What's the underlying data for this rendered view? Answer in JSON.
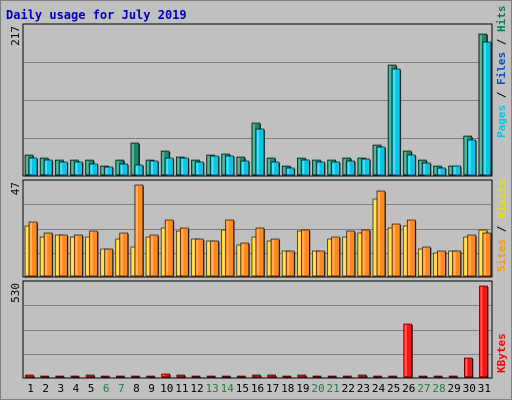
{
  "title": "Daily usage for July 2019",
  "chart_data": [
    {
      "type": "bar",
      "name": "top",
      "ymax_label": "217",
      "ylim": [
        0,
        217
      ],
      "legend": [
        {
          "text": "Pages",
          "color": "#00c8e8"
        },
        {
          "text": "Files",
          "color": "#0050c8"
        },
        {
          "text": "Hits",
          "color": "#00805a"
        }
      ],
      "categories": [
        "1",
        "2",
        "3",
        "4",
        "5",
        "6",
        "7",
        "8",
        "9",
        "10",
        "11",
        "12",
        "13",
        "14",
        "15",
        "16",
        "17",
        "18",
        "19",
        "20",
        "21",
        "22",
        "23",
        "24",
        "25",
        "26",
        "27",
        "28",
        "29",
        "30",
        "31"
      ],
      "series": [
        {
          "name": "Hits",
          "color": "#1a8a6a",
          "values": [
            30,
            25,
            23,
            23,
            22,
            14,
            22,
            48,
            22,
            35,
            27,
            22,
            30,
            31,
            27,
            77,
            25,
            13,
            26,
            22,
            22,
            26,
            26,
            44,
            164,
            35,
            22,
            14,
            14,
            58,
            210
          ]
        },
        {
          "name": "Files",
          "color": "#00c8e8",
          "values": [
            25,
            22,
            19,
            19,
            17,
            12,
            16,
            15,
            21,
            26,
            25,
            19,
            28,
            28,
            21,
            69,
            20,
            11,
            22,
            19,
            19,
            21,
            24,
            41,
            157,
            30,
            18,
            11,
            13,
            52,
            198
          ]
        }
      ]
    },
    {
      "type": "bar",
      "name": "middle",
      "ymax_label": "47",
      "ylim": [
        0,
        47
      ],
      "legend": [
        {
          "text": "Sites",
          "color": "#ff9900"
        },
        {
          "text": "Visits",
          "color": "#e8e000"
        }
      ],
      "categories": [
        "1",
        "2",
        "3",
        "4",
        "5",
        "6",
        "7",
        "8",
        "9",
        "10",
        "11",
        "12",
        "13",
        "14",
        "15",
        "16",
        "17",
        "18",
        "19",
        "20",
        "21",
        "22",
        "23",
        "24",
        "25",
        "26",
        "27",
        "28",
        "29",
        "30",
        "31"
      ],
      "series": [
        {
          "name": "Visits",
          "color": "#ffd21e",
          "values": [
            26,
            20,
            21,
            20,
            20,
            14,
            19,
            15,
            20,
            25,
            23,
            19,
            18,
            24,
            16,
            20,
            18,
            13,
            23,
            13,
            19,
            20,
            22,
            40,
            25,
            26,
            14,
            12,
            13,
            20,
            24
          ]
        },
        {
          "name": "Sites",
          "color": "#ff8a1a",
          "values": [
            28,
            22,
            21,
            21,
            23,
            14,
            22,
            47,
            21,
            29,
            25,
            19,
            18,
            29,
            17,
            25,
            19,
            13,
            24,
            13,
            20,
            23,
            24,
            44,
            27,
            29,
            15,
            13,
            13,
            21,
            22
          ]
        }
      ]
    },
    {
      "type": "bar",
      "name": "bottom",
      "ymax_label": "530",
      "ylim": [
        0,
        530
      ],
      "legend": [
        {
          "text": "KBytes",
          "color": "#ff0000"
        }
      ],
      "categories": [
        "1",
        "2",
        "3",
        "4",
        "5",
        "6",
        "7",
        "8",
        "9",
        "10",
        "11",
        "12",
        "13",
        "14",
        "15",
        "16",
        "17",
        "18",
        "19",
        "20",
        "21",
        "22",
        "23",
        "24",
        "25",
        "26",
        "27",
        "28",
        "29",
        "30",
        "31"
      ],
      "series": [
        {
          "name": "KBytes",
          "color": "#ff1010",
          "values": [
            14,
            8,
            8,
            8,
            12,
            8,
            8,
            8,
            8,
            20,
            12,
            8,
            8,
            8,
            8,
            12,
            12,
            8,
            12,
            8,
            8,
            8,
            12,
            8,
            8,
            306,
            8,
            8,
            8,
            110,
            530
          ]
        }
      ]
    }
  ],
  "day_colors": {
    "weekday": "#000000",
    "weekend": "#208040"
  },
  "weekend_days": [
    "6",
    "7",
    "13",
    "14",
    "20",
    "21",
    "27",
    "28"
  ]
}
